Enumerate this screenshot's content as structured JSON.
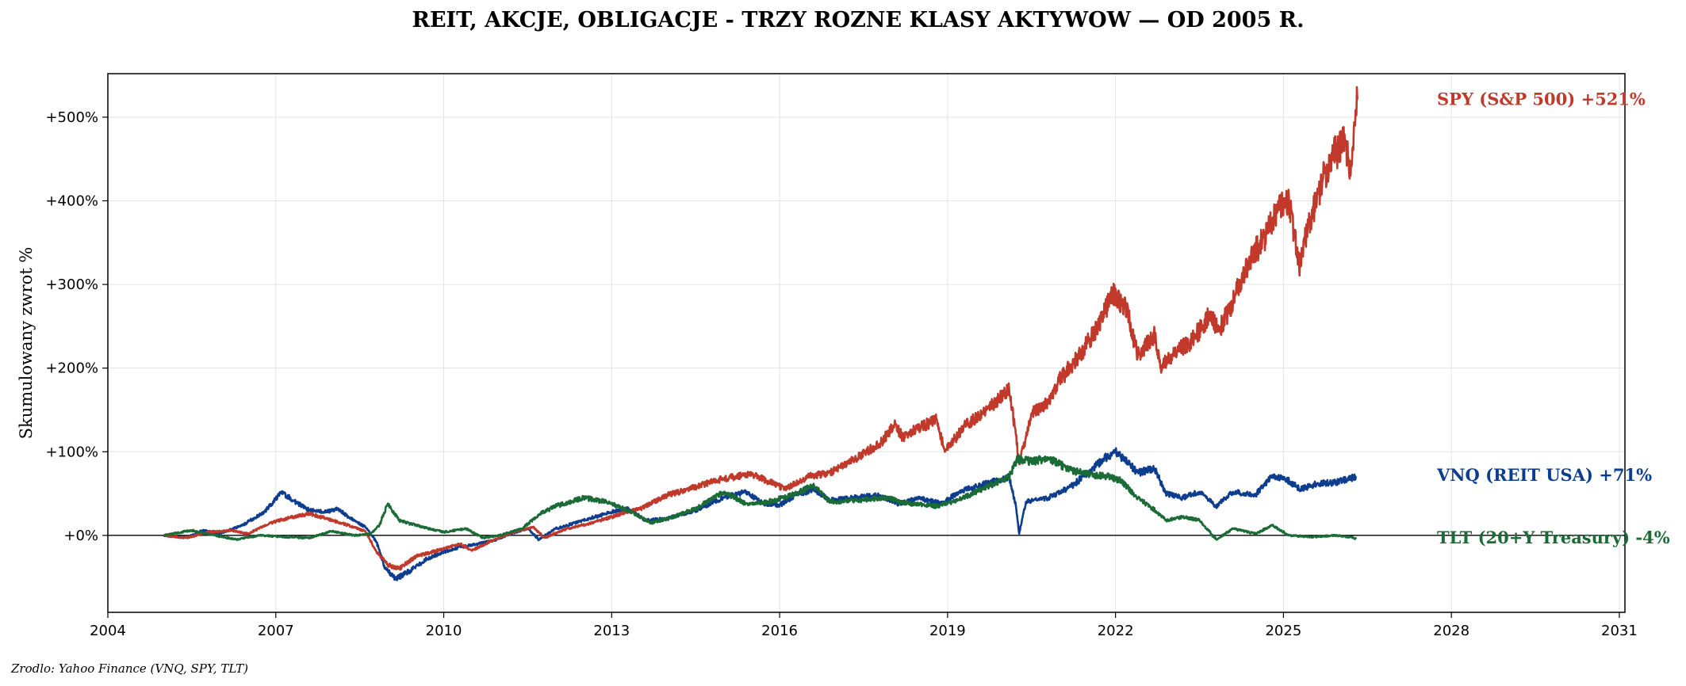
{
  "chart_data": {
    "type": "line",
    "title": "REIT, AKCJE, OBLIGACJE - TRZY ROZNE KLASY AKTYWOW — OD 2005 R.",
    "ylabel": "Skumulowany zwrot %",
    "xlabel": "",
    "source": "Zrodlo: Yahoo Finance (VNQ, SPY, TLT)",
    "xlim": [
      2004,
      2031.1
    ],
    "ylim": [
      -92,
      552
    ],
    "x_ticks": [
      2004,
      2007,
      2010,
      2013,
      2016,
      2019,
      2022,
      2025,
      2028,
      2031
    ],
    "y_ticks": [
      {
        "value": 0,
        "label": "+0%"
      },
      {
        "value": 100,
        "label": "+100%"
      },
      {
        "value": 200,
        "label": "+200%"
      },
      {
        "value": 300,
        "label": "+300%"
      },
      {
        "value": 400,
        "label": "+400%"
      },
      {
        "value": 500,
        "label": "+500%"
      }
    ],
    "grid": true,
    "zero_line": true,
    "series": [
      {
        "name": "VNQ (REIT USA)",
        "end_label": "VNQ (REIT USA)  +71%",
        "color": "#0d3d8f",
        "label_y": 72,
        "points": [
          [
            2005.0,
            0
          ],
          [
            2005.4,
            -3
          ],
          [
            2005.7,
            6
          ],
          [
            2006.0,
            2
          ],
          [
            2006.4,
            12
          ],
          [
            2006.8,
            28
          ],
          [
            2007.1,
            52
          ],
          [
            2007.3,
            42
          ],
          [
            2007.6,
            30
          ],
          [
            2007.9,
            28
          ],
          [
            2008.1,
            32
          ],
          [
            2008.3,
            22
          ],
          [
            2008.6,
            10
          ],
          [
            2008.8,
            -8
          ],
          [
            2008.95,
            -40
          ],
          [
            2009.15,
            -52
          ],
          [
            2009.4,
            -42
          ],
          [
            2009.7,
            -28
          ],
          [
            2010.0,
            -20
          ],
          [
            2010.3,
            -14
          ],
          [
            2010.6,
            -10
          ],
          [
            2010.9,
            -6
          ],
          [
            2011.2,
            2
          ],
          [
            2011.5,
            8
          ],
          [
            2011.7,
            -5
          ],
          [
            2012.0,
            8
          ],
          [
            2012.5,
            18
          ],
          [
            2013.0,
            28
          ],
          [
            2013.3,
            32
          ],
          [
            2013.6,
            18
          ],
          [
            2014.0,
            20
          ],
          [
            2014.5,
            30
          ],
          [
            2015.0,
            45
          ],
          [
            2015.4,
            52
          ],
          [
            2015.7,
            38
          ],
          [
            2016.0,
            36
          ],
          [
            2016.3,
            48
          ],
          [
            2016.6,
            55
          ],
          [
            2016.9,
            42
          ],
          [
            2017.3,
            45
          ],
          [
            2017.8,
            48
          ],
          [
            2018.1,
            38
          ],
          [
            2018.5,
            44
          ],
          [
            2018.9,
            38
          ],
          [
            2019.2,
            52
          ],
          [
            2019.6,
            60
          ],
          [
            2020.1,
            70
          ],
          [
            2020.22,
            35
          ],
          [
            2020.28,
            2
          ],
          [
            2020.4,
            40
          ],
          [
            2020.8,
            45
          ],
          [
            2021.2,
            58
          ],
          [
            2021.6,
            80
          ],
          [
            2021.8,
            92
          ],
          [
            2022.0,
            100
          ],
          [
            2022.2,
            88
          ],
          [
            2022.4,
            75
          ],
          [
            2022.7,
            80
          ],
          [
            2022.9,
            50
          ],
          [
            2023.2,
            45
          ],
          [
            2023.5,
            52
          ],
          [
            2023.8,
            35
          ],
          [
            2024.1,
            52
          ],
          [
            2024.5,
            48
          ],
          [
            2024.8,
            72
          ],
          [
            2025.1,
            65
          ],
          [
            2025.3,
            55
          ],
          [
            2025.6,
            62
          ],
          [
            2025.9,
            63
          ],
          [
            2026.2,
            68
          ],
          [
            2026.3,
            71
          ]
        ]
      },
      {
        "name": "SPY (S&P 500)",
        "end_label": "SPY (S&P 500)  +521%",
        "color": "#c0392b",
        "label_y": 521,
        "points": [
          [
            2005.0,
            0
          ],
          [
            2005.4,
            -3
          ],
          [
            2005.8,
            4
          ],
          [
            2006.2,
            6
          ],
          [
            2006.5,
            2
          ],
          [
            2006.9,
            15
          ],
          [
            2007.3,
            22
          ],
          [
            2007.6,
            26
          ],
          [
            2007.9,
            20
          ],
          [
            2008.3,
            12
          ],
          [
            2008.6,
            5
          ],
          [
            2008.8,
            -20
          ],
          [
            2009.0,
            -35
          ],
          [
            2009.2,
            -40
          ],
          [
            2009.5,
            -25
          ],
          [
            2009.9,
            -18
          ],
          [
            2010.3,
            -10
          ],
          [
            2010.5,
            -18
          ],
          [
            2010.9,
            -5
          ],
          [
            2011.3,
            5
          ],
          [
            2011.6,
            10
          ],
          [
            2011.8,
            -3
          ],
          [
            2012.2,
            8
          ],
          [
            2012.6,
            14
          ],
          [
            2013.0,
            22
          ],
          [
            2013.5,
            32
          ],
          [
            2014.0,
            48
          ],
          [
            2014.5,
            58
          ],
          [
            2015.0,
            68
          ],
          [
            2015.5,
            73
          ],
          [
            2015.9,
            62
          ],
          [
            2016.1,
            55
          ],
          [
            2016.5,
            70
          ],
          [
            2016.9,
            75
          ],
          [
            2017.3,
            90
          ],
          [
            2017.8,
            110
          ],
          [
            2018.05,
            132
          ],
          [
            2018.2,
            118
          ],
          [
            2018.6,
            132
          ],
          [
            2018.8,
            138
          ],
          [
            2018.95,
            100
          ],
          [
            2019.3,
            130
          ],
          [
            2019.7,
            150
          ],
          [
            2020.1,
            175
          ],
          [
            2020.22,
            120
          ],
          [
            2020.28,
            85
          ],
          [
            2020.5,
            145
          ],
          [
            2020.8,
            160
          ],
          [
            2021.0,
            185
          ],
          [
            2021.4,
            220
          ],
          [
            2021.7,
            250
          ],
          [
            2021.95,
            290
          ],
          [
            2022.2,
            270
          ],
          [
            2022.4,
            215
          ],
          [
            2022.7,
            240
          ],
          [
            2022.8,
            200
          ],
          [
            2023.0,
            215
          ],
          [
            2023.4,
            235
          ],
          [
            2023.7,
            265
          ],
          [
            2023.85,
            245
          ],
          [
            2024.1,
            280
          ],
          [
            2024.4,
            330
          ],
          [
            2024.7,
            360
          ],
          [
            2024.95,
            395
          ],
          [
            2025.1,
            400
          ],
          [
            2025.2,
            360
          ],
          [
            2025.28,
            320
          ],
          [
            2025.45,
            370
          ],
          [
            2025.7,
            425
          ],
          [
            2025.9,
            455
          ],
          [
            2026.1,
            470
          ],
          [
            2026.2,
            430
          ],
          [
            2026.28,
            490
          ],
          [
            2026.32,
            521
          ]
        ]
      },
      {
        "name": "TLT (20+Y Treasury)",
        "end_label": "TLT (20+Y Treasury)  -4%",
        "color": "#1a6b35",
        "label_y": -3,
        "points": [
          [
            2005.0,
            0
          ],
          [
            2005.5,
            6
          ],
          [
            2005.9,
            0
          ],
          [
            2006.3,
            -5
          ],
          [
            2006.7,
            0
          ],
          [
            2007.2,
            -2
          ],
          [
            2007.6,
            -3
          ],
          [
            2008.0,
            5
          ],
          [
            2008.4,
            0
          ],
          [
            2008.7,
            2
          ],
          [
            2008.85,
            12
          ],
          [
            2009.0,
            38
          ],
          [
            2009.2,
            18
          ],
          [
            2009.6,
            10
          ],
          [
            2010.0,
            4
          ],
          [
            2010.4,
            8
          ],
          [
            2010.7,
            -3
          ],
          [
            2011.0,
            0
          ],
          [
            2011.4,
            8
          ],
          [
            2011.7,
            25
          ],
          [
            2012.0,
            35
          ],
          [
            2012.5,
            45
          ],
          [
            2012.9,
            40
          ],
          [
            2013.3,
            30
          ],
          [
            2013.7,
            15
          ],
          [
            2014.0,
            20
          ],
          [
            2014.5,
            32
          ],
          [
            2015.0,
            52
          ],
          [
            2015.4,
            38
          ],
          [
            2015.8,
            40
          ],
          [
            2016.3,
            50
          ],
          [
            2016.6,
            60
          ],
          [
            2016.9,
            40
          ],
          [
            2017.4,
            42
          ],
          [
            2017.9,
            45
          ],
          [
            2018.3,
            38
          ],
          [
            2018.8,
            35
          ],
          [
            2019.2,
            42
          ],
          [
            2019.7,
            58
          ],
          [
            2020.1,
            70
          ],
          [
            2020.25,
            92
          ],
          [
            2020.5,
            88
          ],
          [
            2020.8,
            92
          ],
          [
            2021.2,
            78
          ],
          [
            2021.6,
            72
          ],
          [
            2021.9,
            70
          ],
          [
            2022.1,
            65
          ],
          [
            2022.4,
            45
          ],
          [
            2022.7,
            30
          ],
          [
            2022.9,
            18
          ],
          [
            2023.2,
            22
          ],
          [
            2023.5,
            18
          ],
          [
            2023.8,
            -5
          ],
          [
            2024.1,
            8
          ],
          [
            2024.5,
            2
          ],
          [
            2024.8,
            12
          ],
          [
            2025.1,
            0
          ],
          [
            2025.5,
            -2
          ],
          [
            2025.9,
            0
          ],
          [
            2026.2,
            -2
          ],
          [
            2026.3,
            -4
          ]
        ]
      }
    ]
  }
}
